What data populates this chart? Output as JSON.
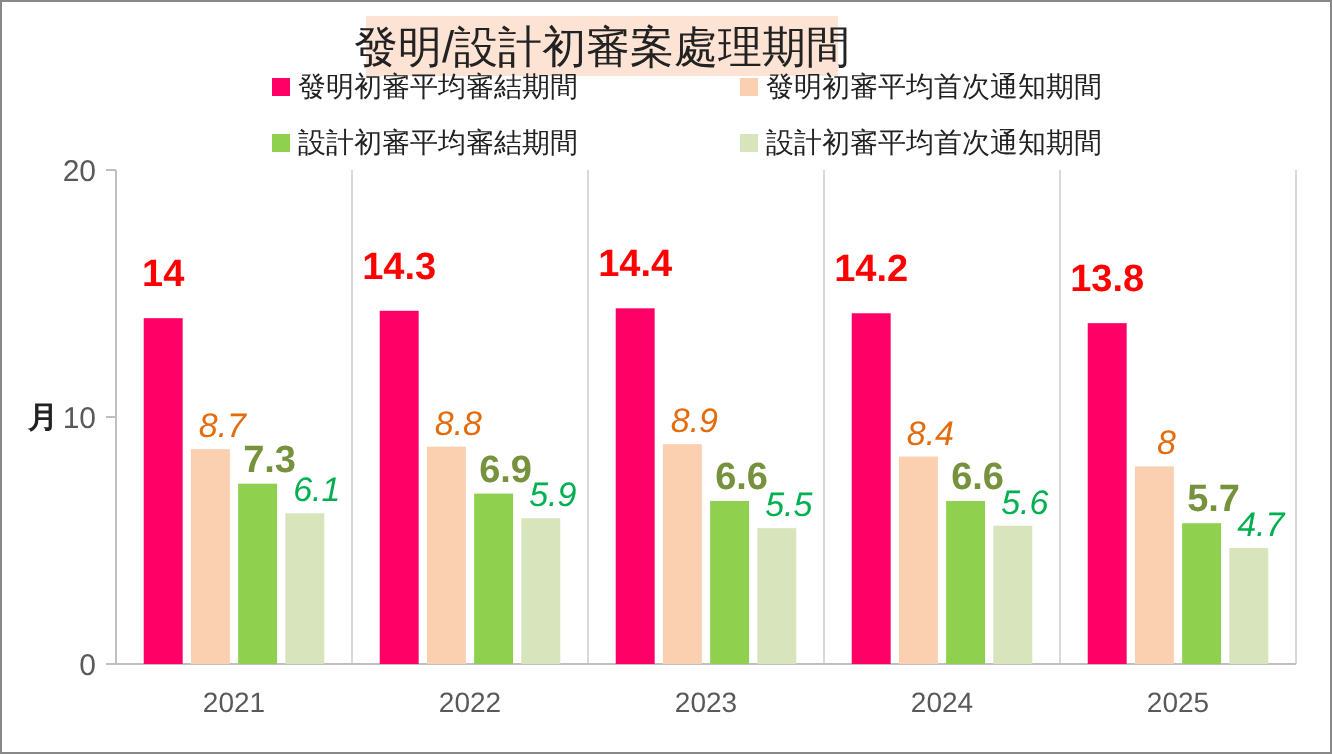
{
  "chart_data": {
    "type": "bar",
    "title": "發明/設計初審案處理期間",
    "ylabel": "月",
    "categories": [
      "2021",
      "2022",
      "2023",
      "2024",
      "2025"
    ],
    "series": [
      {
        "name": "發明初審平均審結期間",
        "color": "#ff0066",
        "values": [
          14,
          14.3,
          14.4,
          14.2,
          13.8
        ]
      },
      {
        "name": "發明初審平均首次通知期間",
        "color": "#fbd0b0",
        "values": [
          8.7,
          8.8,
          8.9,
          8.4,
          8
        ]
      },
      {
        "name": "設計初審平均審結期間",
        "color": "#8fd14f",
        "values": [
          7.3,
          6.9,
          6.6,
          6.6,
          5.7
        ]
      },
      {
        "name": "設計初審平均首次通知期間",
        "color": "#d8e4bc",
        "values": [
          6.1,
          5.9,
          5.5,
          5.6,
          4.7
        ]
      }
    ],
    "ylim": [
      0,
      20
    ],
    "yticks": [
      0,
      10,
      20
    ],
    "grid": "x",
    "legend": "top",
    "data_labels": true
  }
}
